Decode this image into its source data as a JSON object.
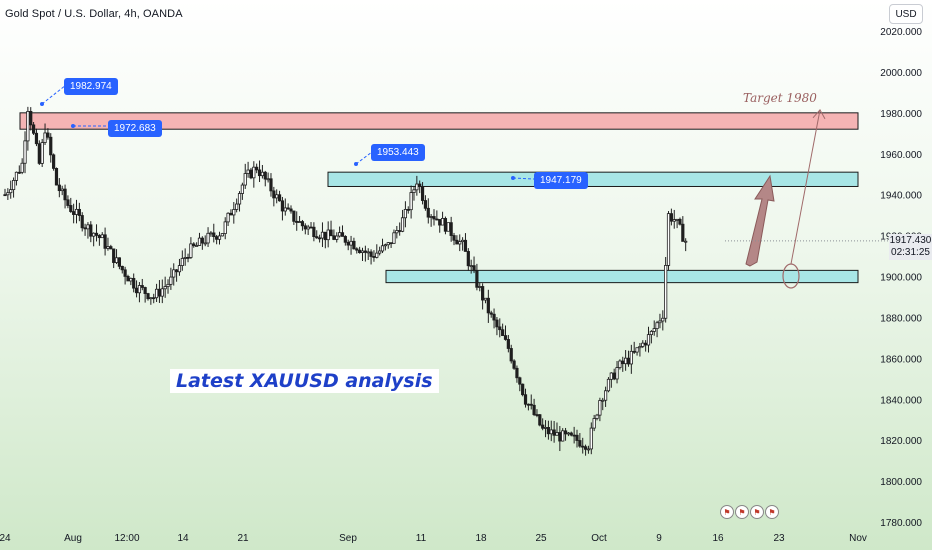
{
  "header": {
    "title": "Gold Spot / U.S. Dollar, 4h, OANDA",
    "currency": "USD"
  },
  "annotations": {
    "headline": "Latest XAUUSD analysis",
    "target": "Target 1980",
    "callouts": [
      "1982.974",
      "1972.683",
      "1953.443",
      "1947.179"
    ]
  },
  "price_tag": {
    "price": "1917.430",
    "countdown": "02:31:25"
  },
  "colors": {
    "zone_resistance": "#f5b4b4",
    "zone_mid": "#a8e6e6",
    "zone_support": "#a8e6e6",
    "candle": "#1f1f1f",
    "callout": "#2862ff",
    "target_arrow": "#a06a6a",
    "headline": "#1e40c8"
  },
  "chart_data": {
    "type": "candlestick",
    "title": "Gold Spot / U.S. Dollar, 4h, OANDA",
    "yaxis": {
      "ticks": [
        "1780.000",
        "1800.000",
        "1820.000",
        "1840.000",
        "1860.000",
        "1880.000",
        "1900.000",
        "1920.000",
        "1940.000",
        "1960.000",
        "1980.000",
        "2000.000",
        "2020.000"
      ],
      "range": [
        1778,
        2022
      ]
    },
    "xaxis": {
      "ticks": [
        "24",
        "Aug",
        "12:00",
        "14",
        "21",
        "Sep",
        "11",
        "18",
        "25",
        "Oct",
        "9",
        "16",
        "23",
        "Nov"
      ]
    },
    "price_path": [
      [
        24,
        1940
      ],
      [
        27,
        1955
      ],
      [
        28,
        1982.974
      ],
      [
        30,
        1955
      ],
      [
        31,
        1972.683
      ],
      [
        33,
        1945
      ],
      [
        35,
        1935
      ],
      [
        38,
        1925
      ],
      [
        41,
        1918
      ],
      [
        44,
        1905
      ],
      [
        47,
        1895
      ],
      [
        50,
        1890
      ],
      [
        53,
        1898
      ],
      [
        56,
        1912
      ],
      [
        59,
        1918
      ],
      [
        62,
        1922
      ],
      [
        64,
        1935
      ],
      [
        66,
        1948
      ],
      [
        68,
        1953.443
      ],
      [
        70,
        1945
      ],
      [
        73,
        1932
      ],
      [
        76,
        1925
      ],
      [
        80,
        1920
      ],
      [
        84,
        1918
      ],
      [
        88,
        1910
      ],
      [
        91,
        1915
      ],
      [
        94,
        1930
      ],
      [
        96,
        1947.179
      ],
      [
        98,
        1932
      ],
      [
        101,
        1925
      ],
      [
        104,
        1915
      ],
      [
        106,
        1900
      ],
      [
        109,
        1880
      ],
      [
        112,
        1865
      ],
      [
        115,
        1840
      ],
      [
        118,
        1825
      ],
      [
        121,
        1822
      ],
      [
        124,
        1820
      ],
      [
        126,
        1818
      ],
      [
        128,
        1840
      ],
      [
        131,
        1855
      ],
      [
        134,
        1862
      ],
      [
        137,
        1872
      ],
      [
        139,
        1882
      ],
      [
        140,
        1930
      ],
      [
        141,
        1928
      ],
      [
        143,
        1917.43
      ]
    ],
    "zones": [
      {
        "from": 1972,
        "to": 1980
      },
      {
        "from": 1944,
        "to": 1951
      },
      {
        "from": 1897,
        "to": 1903
      }
    ],
    "target": 1980,
    "current_price": 1917.43,
    "legend": "none",
    "grid": false
  }
}
